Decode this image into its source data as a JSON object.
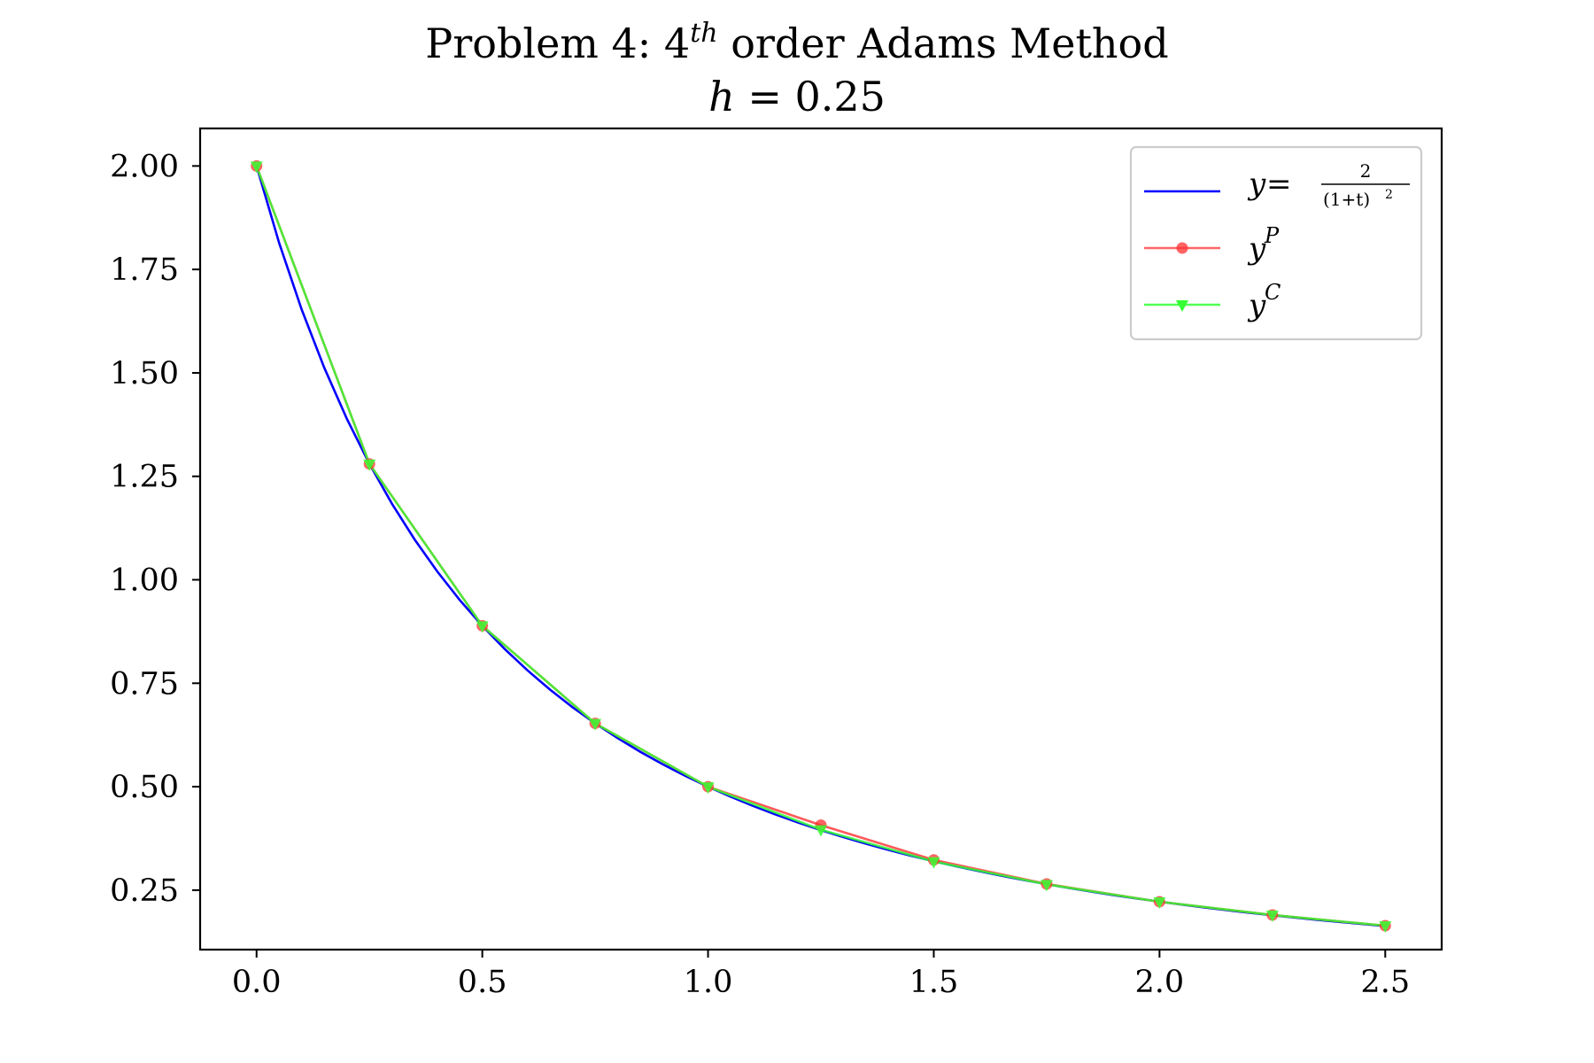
{
  "title": {
    "line1_prefix": "Problem 4: 4",
    "line1_superscript": "th",
    "line1_suffix": " order Adams Method",
    "line2_var": "h",
    "line2_rest": " = 0.25"
  },
  "chart_data": {
    "type": "line",
    "xlim": [
      -0.125,
      2.625
    ],
    "ylim": [
      0.1063,
      2.0907
    ],
    "xticks": [
      {
        "value": 0.0,
        "label": "0.0"
      },
      {
        "value": 0.5,
        "label": "0.5"
      },
      {
        "value": 1.0,
        "label": "1.0"
      },
      {
        "value": 1.5,
        "label": "1.5"
      },
      {
        "value": 2.0,
        "label": "2.0"
      },
      {
        "value": 2.5,
        "label": "2.5"
      }
    ],
    "yticks": [
      {
        "value": 0.25,
        "label": "0.25"
      },
      {
        "value": 0.5,
        "label": "0.50"
      },
      {
        "value": 0.75,
        "label": "0.75"
      },
      {
        "value": 1.0,
        "label": "1.00"
      },
      {
        "value": 1.25,
        "label": "1.25"
      },
      {
        "value": 1.5,
        "label": "1.50"
      },
      {
        "value": 1.75,
        "label": "1.75"
      },
      {
        "value": 2.0,
        "label": "2.00"
      }
    ],
    "grid": false,
    "legend_position": "top-right",
    "exact": {
      "name": "y = 2/(1+t)^2",
      "color": "#0000ff",
      "x": [
        0.0,
        0.05,
        0.1,
        0.15,
        0.2,
        0.25,
        0.3,
        0.35,
        0.4,
        0.45,
        0.5,
        0.55,
        0.6,
        0.65,
        0.7,
        0.75,
        0.8,
        0.85,
        0.9,
        0.95,
        1.0,
        1.05,
        1.1,
        1.15,
        1.2,
        1.25,
        1.3,
        1.35,
        1.4,
        1.45,
        1.5,
        1.55,
        1.6,
        1.65,
        1.7,
        1.75,
        1.8,
        1.85,
        1.9,
        1.95,
        2.0,
        2.05,
        2.1,
        2.15,
        2.2,
        2.25,
        2.3,
        2.35,
        2.4,
        2.45,
        2.5
      ],
      "y": [
        2.0,
        1.8141,
        1.6529,
        1.5123,
        1.3889,
        1.28,
        1.1834,
        1.0974,
        1.0204,
        0.9512,
        0.8889,
        0.8325,
        0.7813,
        0.7346,
        0.692,
        0.6531,
        0.6173,
        0.5844,
        0.554,
        0.526,
        0.5,
        0.4759,
        0.4535,
        0.4327,
        0.4132,
        0.3951,
        0.3781,
        0.3622,
        0.3472,
        0.3331,
        0.32,
        0.3075,
        0.2959,
        0.2848,
        0.2743,
        0.2645,
        0.2551,
        0.2462,
        0.2378,
        0.2298,
        0.2222,
        0.215,
        0.2081,
        0.2016,
        0.1953,
        0.1893,
        0.1837,
        0.1782,
        0.173,
        0.1681,
        0.1633
      ]
    },
    "series": [
      {
        "name": "y^P",
        "color": "#ff3030",
        "marker": "circle",
        "x": [
          0.0,
          0.25,
          0.5,
          0.75,
          1.0,
          1.25,
          1.5,
          1.75,
          2.0,
          2.25,
          2.5
        ],
        "y": [
          2.0,
          1.28,
          0.8889,
          0.6531,
          0.5,
          0.407,
          0.323,
          0.265,
          0.222,
          0.19,
          0.164
        ]
      },
      {
        "name": "y^C",
        "color": "#33ff33",
        "marker": "triangle-down",
        "x": [
          0.0,
          0.25,
          0.5,
          0.75,
          1.0,
          1.25,
          1.5,
          1.75,
          2.0,
          2.25,
          2.5
        ],
        "y": [
          2.0,
          1.28,
          0.8889,
          0.6531,
          0.5,
          0.396,
          0.319,
          0.264,
          0.222,
          0.19,
          0.164
        ]
      }
    ],
    "legend": {
      "exact": {
        "lhs": "y",
        "eq": " = ",
        "num": "2",
        "den": "(1+t)",
        "den_exp": "2"
      },
      "pred": {
        "base": "y",
        "sup": "P"
      },
      "corr": {
        "base": "y",
        "sup": "C"
      }
    }
  }
}
